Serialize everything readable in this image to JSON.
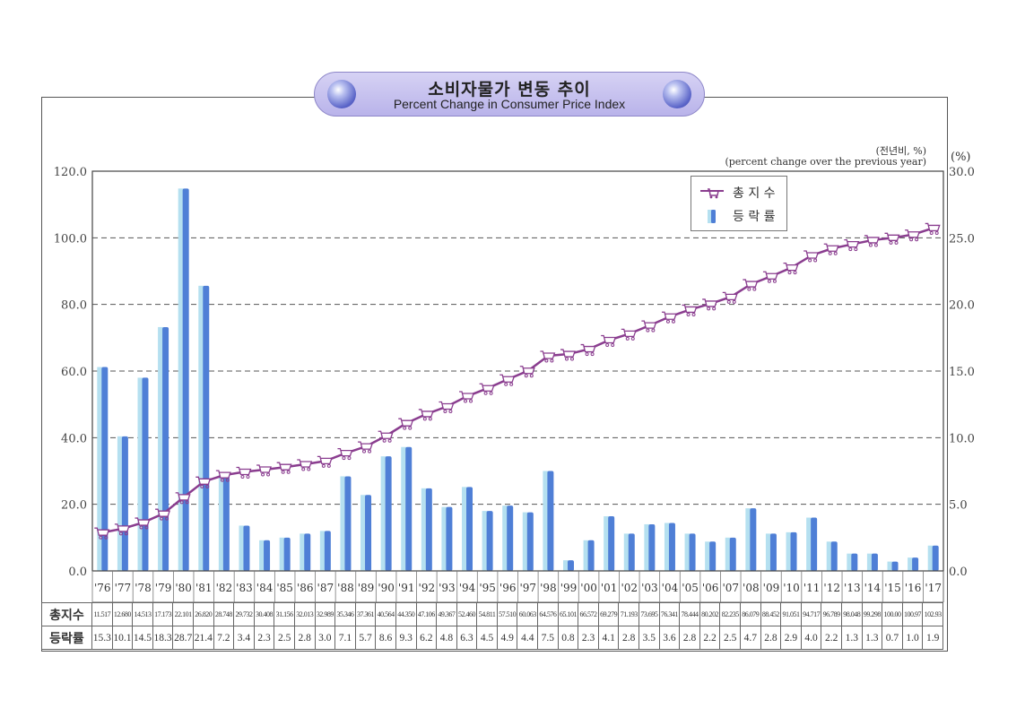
{
  "title": {
    "korean": "소비자물가 변동 추이",
    "english": "Percent Change in Consumer Price Index"
  },
  "unit_note": {
    "korean": "(전년비, %)",
    "english": "(percent change over the previous year)",
    "right_axis_unit": "(%)"
  },
  "legend": {
    "index_label": "총 지 수",
    "change_label": "등 락 률"
  },
  "table": {
    "index_header": "총지수",
    "change_header": "등락률"
  },
  "colors": {
    "bar_light": "#b5e0f0",
    "bar_dark": "#4f7fd6",
    "line": "#8a3d8f",
    "grid": "#555555",
    "title_pill": "#c8c3f0"
  },
  "chart_data": {
    "type": "bar+line",
    "title": "Percent Change in Consumer Price Index",
    "categories": [
      "'76",
      "'77",
      "'78",
      "'79",
      "'80",
      "'81",
      "'82",
      "'83",
      "'84",
      "'85",
      "'86",
      "'87",
      "'88",
      "'89",
      "'90",
      "'91",
      "'92",
      "'93",
      "'94",
      "'95",
      "'96",
      "'97",
      "'98",
      "'99",
      "'00",
      "'01",
      "'02",
      "'03",
      "'04",
      "'05",
      "'06",
      "'07",
      "'08",
      "'09",
      "'10",
      "'11",
      "'12",
      "'13",
      "'14",
      "'15",
      "'16",
      "'17"
    ],
    "series": [
      {
        "name": "총지수",
        "type": "line",
        "axis": "left",
        "values": [
          11.517,
          12.68,
          14.513,
          17.173,
          22.101,
          26.82,
          28.748,
          29.732,
          30.408,
          31.156,
          32.013,
          32.989,
          35.346,
          37.361,
          40.564,
          44.35,
          47.106,
          49.367,
          52.46,
          54.811,
          57.51,
          60.063,
          64.576,
          65.101,
          66.572,
          69.279,
          71.193,
          73.695,
          76.341,
          78.444,
          80.202,
          82.235,
          86.079,
          88.452,
          91.051,
          94.717,
          96.789,
          98.048,
          99.298,
          100.0,
          100.97,
          102.93
        ],
        "display": [
          "11.517",
          "12.680",
          "14.513",
          "17.173",
          "22.101",
          "26.820",
          "28.748",
          "29.732",
          "30.408",
          "31.156",
          "32.013",
          "32.989",
          "35.346",
          "37.361",
          "40.564",
          "44.350",
          "47.106",
          "49.367",
          "52.460",
          "54.811",
          "57.510",
          "60.063",
          "64.576",
          "65.101",
          "66.572",
          "69.279",
          "71.193",
          "73.695",
          "76.341",
          "78.444",
          "80.202",
          "82.235",
          "86.079",
          "88.452",
          "91.051",
          "94.717",
          "96.789",
          "98.048",
          "99.298",
          "100.00",
          "100.97",
          "102.93"
        ]
      },
      {
        "name": "등락률",
        "type": "bar",
        "axis": "right",
        "values": [
          15.3,
          10.1,
          14.5,
          18.3,
          28.7,
          21.4,
          7.2,
          3.4,
          2.3,
          2.5,
          2.8,
          3.0,
          7.1,
          5.7,
          8.6,
          9.3,
          6.2,
          4.8,
          6.3,
          4.5,
          4.9,
          4.4,
          7.5,
          0.8,
          2.3,
          4.1,
          2.8,
          3.5,
          3.6,
          2.8,
          2.2,
          2.5,
          4.7,
          2.8,
          2.9,
          4.0,
          2.2,
          1.3,
          1.3,
          0.7,
          1.0,
          1.9
        ],
        "display": [
          "15.3",
          "10.1",
          "14.5",
          "18.3",
          "28.7",
          "21.4",
          "7.2",
          "3.4",
          "2.3",
          "2.5",
          "2.8",
          "3.0",
          "7.1",
          "5.7",
          "8.6",
          "9.3",
          "6.2",
          "4.8",
          "6.3",
          "4.5",
          "4.9",
          "4.4",
          "7.5",
          "0.8",
          "2.3",
          "4.1",
          "2.8",
          "3.5",
          "3.6",
          "2.8",
          "2.2",
          "2.5",
          "4.7",
          "2.8",
          "2.9",
          "4.0",
          "2.2",
          "1.3",
          "1.3",
          "0.7",
          "1.0",
          "1.9"
        ]
      }
    ],
    "left_axis": {
      "ticks": [
        "0.0",
        "20.0",
        "40.0",
        "60.0",
        "80.0",
        "100.0",
        "120.0"
      ],
      "range": [
        0,
        120
      ]
    },
    "right_axis": {
      "ticks": [
        "0.0",
        "5.0",
        "10.0",
        "15.0",
        "20.0",
        "25.0",
        "30.0"
      ],
      "range": [
        0,
        30
      ],
      "label": "(%)"
    },
    "grid": "dashed horizontal",
    "legend_position": "top-right"
  }
}
